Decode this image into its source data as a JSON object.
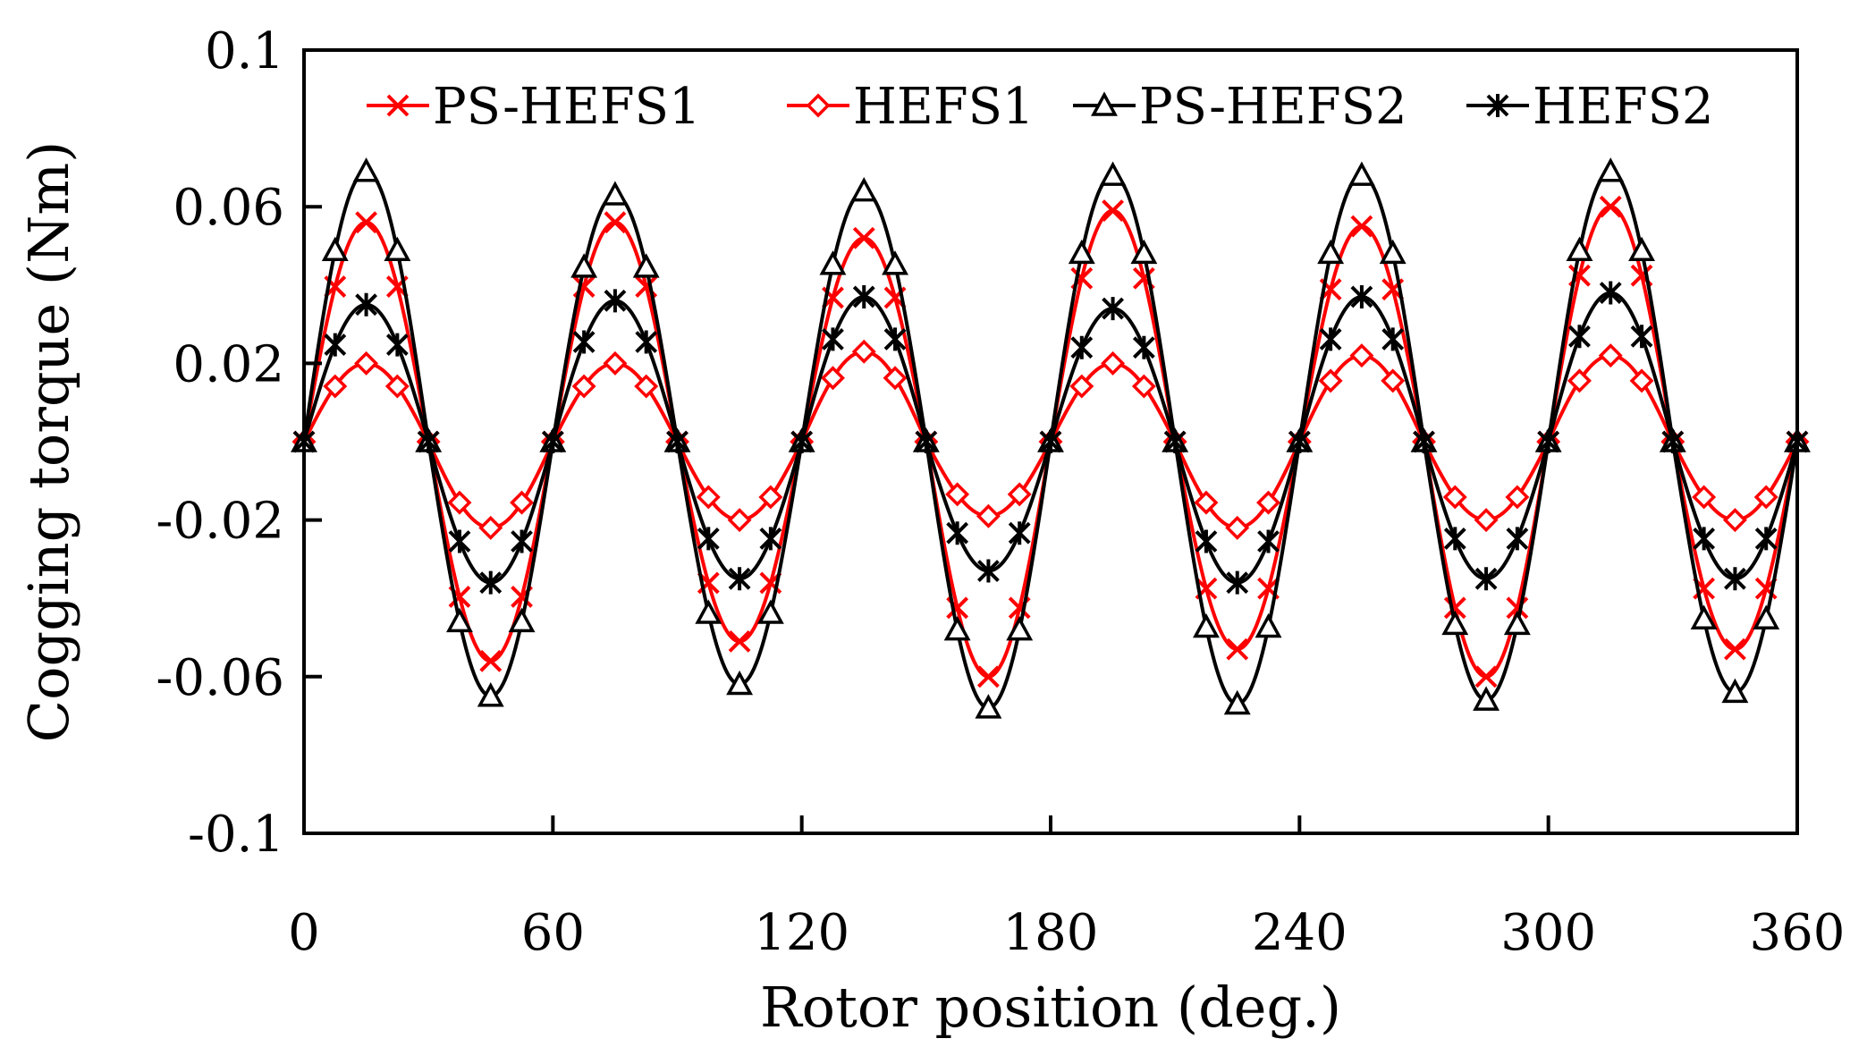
{
  "chart_data": {
    "type": "line",
    "title": "",
    "xlabel": "Rotor position (deg.)",
    "ylabel": "Cogging torque (Nm)",
    "xlim": [
      0,
      360
    ],
    "ylim": [
      -0.1,
      0.1
    ],
    "xticks": [
      0,
      60,
      120,
      180,
      240,
      300,
      360
    ],
    "xtick_labels": [
      "0",
      "60",
      "120",
      "180",
      "240",
      "300",
      "360"
    ],
    "yticks": [
      -0.1,
      -0.06,
      -0.02,
      0.02,
      0.06,
      0.1
    ],
    "ytick_labels": [
      "-0.1",
      "-0.06",
      "-0.02",
      "0.02",
      "0.06",
      "0.1"
    ],
    "grid": false,
    "legend_position": "top",
    "x": [
      0,
      7.5,
      15,
      22.5,
      30,
      37.5,
      45,
      52.5,
      60,
      67.5,
      75,
      82.5,
      90,
      97.5,
      105,
      112.5,
      120,
      127.5,
      135,
      142.5,
      150,
      157.5,
      165,
      172.5,
      180,
      187.5,
      195,
      202.5,
      210,
      217.5,
      225,
      232.5,
      240,
      247.5,
      255,
      262.5,
      270,
      277.5,
      285,
      292.5,
      300,
      307.5,
      315,
      322.5,
      330,
      337.5,
      345,
      352.5,
      360
    ],
    "series": [
      {
        "name": "PS-HEFS1",
        "color": "#ff0000",
        "marker": "x",
        "peaks": [
          0.056,
          -0.056,
          0.056,
          -0.051,
          0.052,
          -0.06,
          0.059,
          -0.053,
          0.055,
          -0.06,
          0.06,
          -0.053
        ]
      },
      {
        "name": "HEFS1",
        "color": "#ff0000",
        "marker": "diamond",
        "peaks": [
          0.02,
          -0.022,
          0.02,
          -0.02,
          0.023,
          -0.019,
          0.02,
          -0.022,
          0.022,
          -0.02,
          0.022,
          -0.02
        ]
      },
      {
        "name": "PS-HEFS2",
        "color": "#000000",
        "marker": "triangle",
        "peaks": [
          0.069,
          -0.065,
          0.063,
          -0.062,
          0.064,
          -0.068,
          0.068,
          -0.067,
          0.068,
          -0.066,
          0.069,
          -0.064
        ]
      },
      {
        "name": "HEFS2",
        "color": "#000000",
        "marker": "asterisk",
        "peaks": [
          0.035,
          -0.036,
          0.036,
          -0.035,
          0.037,
          -0.033,
          0.034,
          -0.036,
          0.037,
          -0.035,
          0.038,
          -0.035
        ]
      }
    ]
  }
}
